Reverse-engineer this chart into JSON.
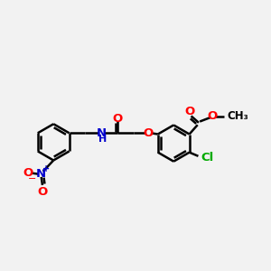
{
  "bg_color": "#f2f2f2",
  "bond_color": "#000000",
  "bond_width": 1.8,
  "figsize": [
    3.0,
    3.0
  ],
  "dpi": 100,
  "colors": {
    "C": "#000000",
    "O": "#ff0000",
    "N": "#0000cd",
    "Cl": "#00aa00",
    "H": "#000000"
  },
  "xlim": [
    0,
    12
  ],
  "ylim": [
    1,
    9
  ]
}
